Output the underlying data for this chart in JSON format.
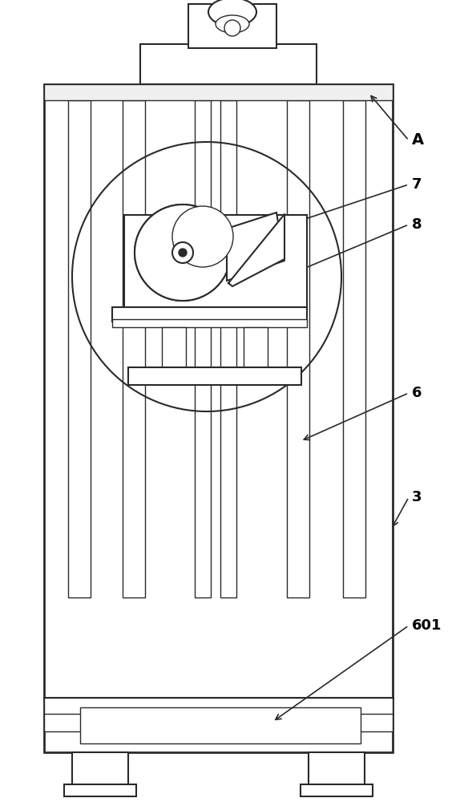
{
  "bg_color": "#ffffff",
  "line_color": "#2a2a2a",
  "lw_thin": 1.0,
  "lw_main": 1.5,
  "lw_thick": 2.0,
  "fig_width": 5.79,
  "fig_height": 10.0
}
